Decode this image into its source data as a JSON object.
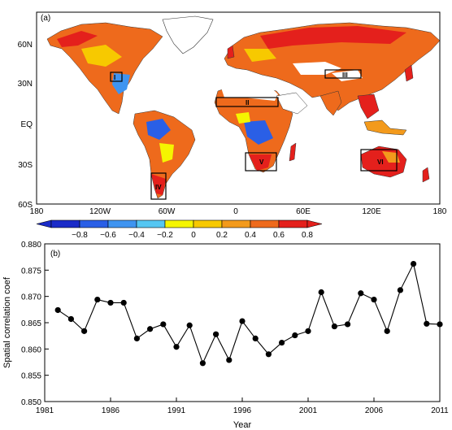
{
  "panel_a": {
    "label": "(a)",
    "lat_ticks": [
      "60N",
      "30N",
      "EQ",
      "30S",
      "60S"
    ],
    "lon_ticks": [
      "180",
      "120W",
      "60W",
      "0",
      "60E",
      "120E",
      "180"
    ],
    "colorbar_ticks": [
      "−0.8",
      "−0.6",
      "−0.4",
      "−0.2",
      "0",
      "0.2",
      "0.4",
      "0.6",
      "0.8"
    ],
    "colorbar_colors": [
      "#1a2bc8",
      "#2a5fe6",
      "#3f94f0",
      "#55c6f2",
      "#f5f500",
      "#f7c900",
      "#f39a1c",
      "#ee6a1c",
      "#e4201c"
    ],
    "region_labels": [
      "I",
      "II",
      "III",
      "IV",
      "V",
      "VI"
    ]
  },
  "chart_data": {
    "type": "line",
    "label": "(b)",
    "xlabel": "Year",
    "ylabel": "Spatial correlation coef",
    "xlim": [
      1981,
      2011
    ],
    "ylim": [
      0.85,
      0.88
    ],
    "xticks": [
      1981,
      1986,
      1991,
      1996,
      2001,
      2006,
      2011
    ],
    "yticks": [
      "0.850",
      "0.855",
      "0.860",
      "0.865",
      "0.870",
      "0.875",
      "0.880"
    ],
    "x": [
      1982,
      1983,
      1984,
      1985,
      1986,
      1987,
      1988,
      1989,
      1990,
      1991,
      1992,
      1993,
      1994,
      1995,
      1996,
      1997,
      1998,
      1999,
      2000,
      2001,
      2002,
      2003,
      2004,
      2005,
      2006,
      2007,
      2008,
      2009,
      2010,
      2011
    ],
    "values": [
      0.8674,
      0.8657,
      0.8634,
      0.8694,
      0.8688,
      0.8688,
      0.862,
      0.8638,
      0.8647,
      0.8604,
      0.8645,
      0.8573,
      0.8628,
      0.8579,
      0.8653,
      0.862,
      0.859,
      0.8612,
      0.8626,
      0.8634,
      0.8708,
      0.8643,
      0.8647,
      0.8706,
      0.8694,
      0.8634,
      0.8712,
      0.8762,
      0.8648,
      0.8647
    ]
  }
}
